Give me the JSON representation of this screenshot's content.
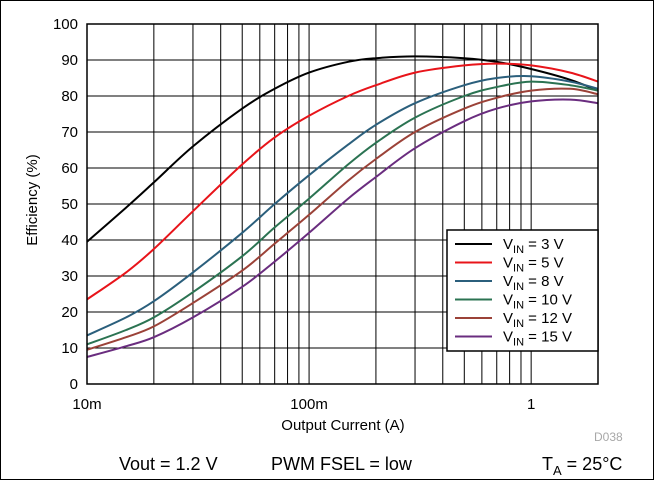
{
  "chart_data": {
    "type": "line",
    "xlabel": "Output Current (A)",
    "ylabel": "Efficiency (%)",
    "x_scale": "log",
    "xlim": [
      0.01,
      2
    ],
    "ylim": [
      0,
      100
    ],
    "x_ticks": [
      {
        "value": 0.01,
        "label": "10m"
      },
      {
        "value": 0.1,
        "label": "100m"
      },
      {
        "value": 1,
        "label": "1"
      }
    ],
    "y_ticks": [
      0,
      10,
      20,
      30,
      40,
      50,
      60,
      70,
      80,
      90,
      100
    ],
    "grid": true,
    "legend_position": "bottom-right",
    "series": [
      {
        "name": "V_IN = 3 V",
        "label_main": "V",
        "label_sub": "IN",
        "label_tail": " = 3 V",
        "color": "#000000",
        "x": [
          0.01,
          0.015,
          0.02,
          0.03,
          0.05,
          0.07,
          0.1,
          0.15,
          0.2,
          0.3,
          0.5,
          0.7,
          1,
          1.5,
          2
        ],
        "y": [
          39.5,
          49,
          56,
          66,
          76.5,
          82,
          86.5,
          89.5,
          90.5,
          91,
          90.5,
          89.5,
          87.5,
          84.5,
          81.5
        ]
      },
      {
        "name": "V_IN = 5 V",
        "label_main": "V",
        "label_sub": "IN",
        "label_tail": " = 5 V",
        "color": "#e8141a",
        "x": [
          0.01,
          0.015,
          0.02,
          0.03,
          0.05,
          0.07,
          0.1,
          0.15,
          0.2,
          0.3,
          0.5,
          0.7,
          1,
          1.5,
          2
        ],
        "y": [
          23.5,
          31,
          37.5,
          48,
          61,
          68.5,
          74.5,
          80,
          83,
          86.5,
          88.5,
          89,
          88.5,
          86.5,
          84
        ]
      },
      {
        "name": "V_IN = 8 V",
        "label_main": "V",
        "label_sub": "IN",
        "label_tail": " = 8 V",
        "color": "#2b5f7c",
        "x": [
          0.01,
          0.015,
          0.02,
          0.03,
          0.05,
          0.07,
          0.1,
          0.15,
          0.2,
          0.3,
          0.5,
          0.7,
          1,
          1.5,
          2
        ],
        "y": [
          13.5,
          18.5,
          23,
          31,
          42,
          50,
          58,
          66.5,
          72,
          78,
          83,
          85,
          85.5,
          84,
          82
        ]
      },
      {
        "name": "V_IN = 10 V",
        "label_main": "V",
        "label_sub": "IN",
        "label_tail": " = 10 V",
        "color": "#2b7352",
        "x": [
          0.01,
          0.015,
          0.02,
          0.03,
          0.05,
          0.07,
          0.1,
          0.15,
          0.2,
          0.3,
          0.5,
          0.7,
          1,
          1.5,
          2
        ],
        "y": [
          11,
          15,
          18.5,
          25.5,
          35.5,
          43.5,
          51.5,
          61,
          67,
          74,
          80,
          82.5,
          84,
          83,
          81.5
        ]
      },
      {
        "name": "V_IN = 12 V",
        "label_main": "V",
        "label_sub": "IN",
        "label_tail": " = 12 V",
        "color": "#9b4238",
        "x": [
          0.01,
          0.015,
          0.02,
          0.03,
          0.05,
          0.07,
          0.1,
          0.15,
          0.2,
          0.3,
          0.5,
          0.7,
          1,
          1.5,
          2
        ],
        "y": [
          9.5,
          13,
          16,
          22.5,
          31.5,
          39,
          47,
          56.5,
          62.5,
          70,
          76.5,
          79.5,
          81.5,
          82,
          80.5
        ]
      },
      {
        "name": "V_IN = 15 V",
        "label_main": "V",
        "label_sub": "IN",
        "label_tail": " = 15 V",
        "color": "#6a2d7f",
        "x": [
          0.01,
          0.015,
          0.02,
          0.03,
          0.05,
          0.07,
          0.1,
          0.15,
          0.2,
          0.3,
          0.5,
          0.7,
          1,
          1.5,
          2
        ],
        "y": [
          7.5,
          10.5,
          13,
          18.5,
          27,
          34,
          42,
          51.5,
          57.5,
          65.5,
          73,
          76.5,
          78.5,
          79,
          78
        ]
      }
    ]
  },
  "figure_id": "D038",
  "footer": {
    "vout": "Vout = 1.2 V",
    "pwm": "PWM FSEL = low",
    "ta_main": "T",
    "ta_sub": "A",
    "ta_tail": " = 25°C"
  }
}
